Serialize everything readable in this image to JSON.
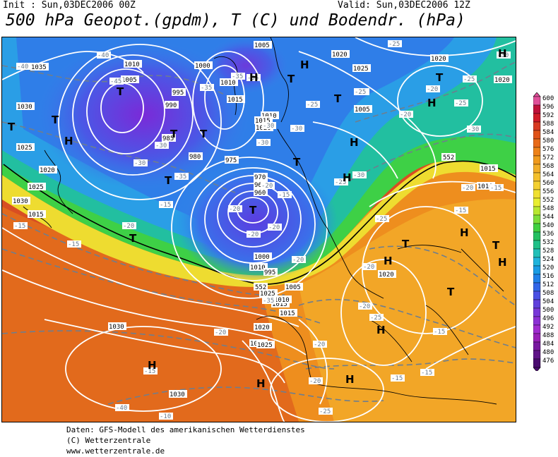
{
  "header": {
    "init": "Init : Sun,03DEC2006 00Z",
    "valid": "Valid: Sun,03DEC2006 12Z",
    "title": "500 hPa Geopot.(gpdm), T (C) und Bodendr. (hPa)"
  },
  "pressure_systems": {
    "high": "H",
    "low": "T"
  },
  "isobar_labels": [
    "1035",
    "1030",
    "1025",
    "1010",
    "1005",
    "1000",
    "995",
    "990",
    "985",
    "980",
    "975",
    "970",
    "965",
    "960",
    "1005",
    "1010",
    "1015",
    "1020",
    "1025",
    "1030",
    "1015",
    "1020",
    "1025",
    "1005",
    "1010",
    "1015",
    "1020",
    "1010",
    "1015",
    "1025",
    "1020",
    "1020",
    "1015",
    "1010",
    "1000",
    "995",
    "1005",
    "1015",
    "1010",
    "1020",
    "1015",
    "1020",
    "1030",
    "1030",
    "1025"
  ],
  "temperature_labels": [
    "-40",
    "-45",
    "-40",
    "-35",
    "-35",
    "-35",
    "-30",
    "-30",
    "-30",
    "-35",
    "-30",
    "-30",
    "-25",
    "-25",
    "-25",
    "-20",
    "-20",
    "-25",
    "-25",
    "-30",
    "-30",
    "-25",
    "-30",
    "-25",
    "-25",
    "-20",
    "-15",
    "-15",
    "-20",
    "-20",
    "-15",
    "-15",
    "-20",
    "-20",
    "-20",
    "-15",
    "-15",
    "-20",
    "-20",
    "-25",
    "-20",
    "-15",
    "-15",
    "-15",
    "-10",
    "-15",
    "-20",
    "-20",
    "-40",
    "-35",
    "-25",
    "-20",
    "-15"
  ],
  "contour_552": "552",
  "color_scale": {
    "values": [
      "600",
      "596",
      "592",
      "588",
      "584",
      "580",
      "576",
      "572",
      "568",
      "564",
      "560",
      "556",
      "552",
      "548",
      "544",
      "540",
      "536",
      "532",
      "528",
      "524",
      "520",
      "516",
      "512",
      "508",
      "504",
      "500",
      "496",
      "492",
      "488",
      "484",
      "480",
      "476"
    ],
    "colors": [
      "#e0509a",
      "#c0103a",
      "#d01a28",
      "#d83a22",
      "#e05218",
      "#e86a18",
      "#ee8218",
      "#f09a1c",
      "#f2ae28",
      "#f4c02c",
      "#f4d030",
      "#f0e030",
      "#e8ee30",
      "#b8e830",
      "#7cde3a",
      "#40d040",
      "#24c060",
      "#20c088",
      "#22c0b8",
      "#20b4dc",
      "#1a9ce4",
      "#2080e8",
      "#3266e8",
      "#4a50e4",
      "#6040dc",
      "#7838d8",
      "#8c30d4",
      "#a02cd0",
      "#9820b8",
      "#7818a0",
      "#601488",
      "#4a0c70"
    ]
  },
  "footer": {
    "line1": "Daten: GFS-Modell des amerikanischen Wetterdienstes",
    "line2": "(C) Wetterzentrale",
    "line3": "www.wetterzentrale.de"
  }
}
